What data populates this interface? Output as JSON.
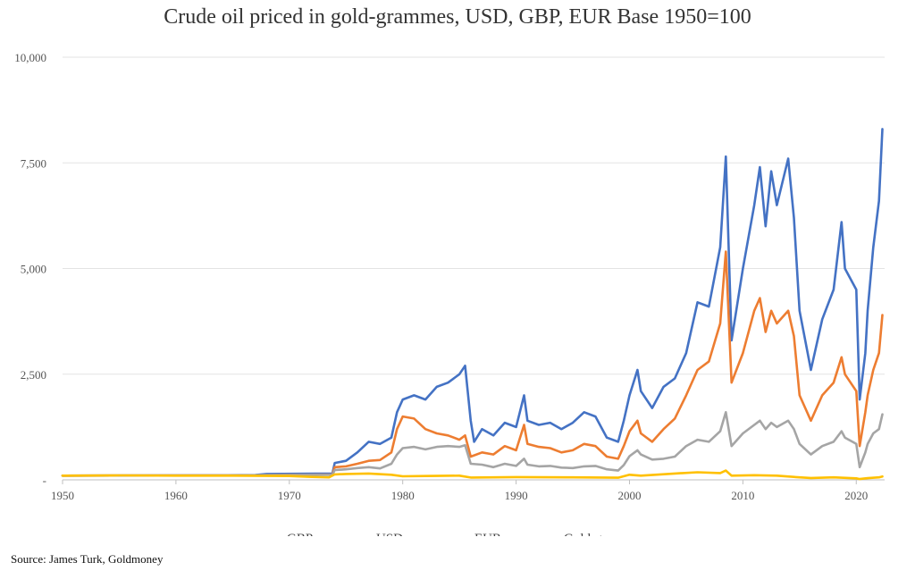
{
  "chart_data": {
    "type": "line",
    "title": "Crude oil priced in gold-grammes, USD, GBP, EUR Base 1950=100",
    "xlabel": "",
    "ylabel": "",
    "xlim": [
      1950,
      2022.5
    ],
    "ylim": [
      0,
      10000
    ],
    "x_ticks": [
      "1950",
      "1960",
      "1970",
      "1980",
      "1990",
      "2000",
      "2010",
      "2020"
    ],
    "y_ticks": [
      "-",
      "2,500",
      "5,000",
      "7,500",
      "10,000"
    ],
    "grid": "horizontal",
    "legend_position": "bottom",
    "source": "Source: James Turk, Goldmoney",
    "series": [
      {
        "name": "GBP",
        "color": "#4472C4",
        "points": [
          [
            1950,
            100
          ],
          [
            1960,
            105
          ],
          [
            1967,
            115
          ],
          [
            1968,
            140
          ],
          [
            1973.8,
            150
          ],
          [
            1974,
            400
          ],
          [
            1975,
            450
          ],
          [
            1976,
            650
          ],
          [
            1977,
            900
          ],
          [
            1978,
            850
          ],
          [
            1979,
            1000
          ],
          [
            1979.5,
            1600
          ],
          [
            1980,
            1900
          ],
          [
            1981,
            2000
          ],
          [
            1982,
            1900
          ],
          [
            1983,
            2200
          ],
          [
            1984,
            2300
          ],
          [
            1985,
            2500
          ],
          [
            1985.5,
            2700
          ],
          [
            1986,
            1400
          ],
          [
            1986.3,
            900
          ],
          [
            1987,
            1200
          ],
          [
            1988,
            1050
          ],
          [
            1989,
            1350
          ],
          [
            1990,
            1250
          ],
          [
            1990.7,
            2000
          ],
          [
            1991,
            1400
          ],
          [
            1992,
            1300
          ],
          [
            1993,
            1350
          ],
          [
            1994,
            1200
          ],
          [
            1995,
            1350
          ],
          [
            1996,
            1600
          ],
          [
            1997,
            1500
          ],
          [
            1998,
            1000
          ],
          [
            1999,
            900
          ],
          [
            1999.5,
            1400
          ],
          [
            2000,
            2000
          ],
          [
            2000.7,
            2600
          ],
          [
            2001,
            2100
          ],
          [
            2002,
            1700
          ],
          [
            2003,
            2200
          ],
          [
            2004,
            2400
          ],
          [
            2005,
            3000
          ],
          [
            2006,
            4200
          ],
          [
            2007,
            4100
          ],
          [
            2008,
            5500
          ],
          [
            2008.5,
            7650
          ],
          [
            2009,
            3300
          ],
          [
            2010,
            5000
          ],
          [
            2011,
            6500
          ],
          [
            2011.5,
            7400
          ],
          [
            2012,
            6000
          ],
          [
            2012.5,
            7300
          ],
          [
            2013,
            6500
          ],
          [
            2014,
            7600
          ],
          [
            2014.5,
            6200
          ],
          [
            2015,
            4000
          ],
          [
            2016,
            2600
          ],
          [
            2017,
            3800
          ],
          [
            2018,
            4500
          ],
          [
            2018.7,
            6100
          ],
          [
            2019,
            5000
          ],
          [
            2020,
            4500
          ],
          [
            2020.3,
            1900
          ],
          [
            2020.8,
            3000
          ],
          [
            2021,
            4000
          ],
          [
            2021.5,
            5500
          ],
          [
            2022,
            6600
          ],
          [
            2022.3,
            8300
          ]
        ]
      },
      {
        "name": "USD",
        "color": "#ED7D31",
        "points": [
          [
            1950,
            100
          ],
          [
            1960,
            105
          ],
          [
            1967,
            110
          ],
          [
            1973.8,
            125
          ],
          [
            1974,
            300
          ],
          [
            1975,
            320
          ],
          [
            1976,
            380
          ],
          [
            1977,
            450
          ],
          [
            1978,
            470
          ],
          [
            1979,
            650
          ],
          [
            1979.5,
            1200
          ],
          [
            1980,
            1500
          ],
          [
            1981,
            1450
          ],
          [
            1982,
            1200
          ],
          [
            1983,
            1100
          ],
          [
            1984,
            1050
          ],
          [
            1985,
            950
          ],
          [
            1985.5,
            1050
          ],
          [
            1986,
            550
          ],
          [
            1987,
            650
          ],
          [
            1988,
            600
          ],
          [
            1989,
            800
          ],
          [
            1990,
            700
          ],
          [
            1990.7,
            1300
          ],
          [
            1991,
            850
          ],
          [
            1992,
            780
          ],
          [
            1993,
            750
          ],
          [
            1994,
            650
          ],
          [
            1995,
            700
          ],
          [
            1996,
            850
          ],
          [
            1997,
            800
          ],
          [
            1998,
            550
          ],
          [
            1999,
            500
          ],
          [
            1999.5,
            800
          ],
          [
            2000,
            1150
          ],
          [
            2000.7,
            1400
          ],
          [
            2001,
            1100
          ],
          [
            2002,
            900
          ],
          [
            2003,
            1200
          ],
          [
            2004,
            1450
          ],
          [
            2005,
            2000
          ],
          [
            2006,
            2600
          ],
          [
            2007,
            2800
          ],
          [
            2008,
            3700
          ],
          [
            2008.5,
            5400
          ],
          [
            2009,
            2300
          ],
          [
            2010,
            3000
          ],
          [
            2011,
            4000
          ],
          [
            2011.5,
            4300
          ],
          [
            2012,
            3500
          ],
          [
            2012.5,
            4000
          ],
          [
            2013,
            3700
          ],
          [
            2014,
            4000
          ],
          [
            2014.5,
            3400
          ],
          [
            2015,
            2000
          ],
          [
            2016,
            1400
          ],
          [
            2017,
            2000
          ],
          [
            2018,
            2300
          ],
          [
            2018.7,
            2900
          ],
          [
            2019,
            2500
          ],
          [
            2020,
            2100
          ],
          [
            2020.3,
            800
          ],
          [
            2020.8,
            1600
          ],
          [
            2021,
            2000
          ],
          [
            2021.5,
            2600
          ],
          [
            2022,
            3000
          ],
          [
            2022.3,
            3900
          ]
        ]
      },
      {
        "name": "EUR",
        "color": "#A5A5A5",
        "points": [
          [
            1950,
            100
          ],
          [
            1960,
            105
          ],
          [
            1967,
            110
          ],
          [
            1973.8,
            120
          ],
          [
            1974,
            230
          ],
          [
            1975,
            250
          ],
          [
            1976,
            280
          ],
          [
            1977,
            300
          ],
          [
            1978,
            270
          ],
          [
            1979,
            380
          ],
          [
            1979.5,
            600
          ],
          [
            1980,
            750
          ],
          [
            1981,
            780
          ],
          [
            1982,
            720
          ],
          [
            1983,
            780
          ],
          [
            1984,
            800
          ],
          [
            1985,
            780
          ],
          [
            1985.5,
            820
          ],
          [
            1986,
            380
          ],
          [
            1987,
            360
          ],
          [
            1988,
            300
          ],
          [
            1989,
            380
          ],
          [
            1990,
            330
          ],
          [
            1990.7,
            500
          ],
          [
            1991,
            360
          ],
          [
            1992,
            320
          ],
          [
            1993,
            330
          ],
          [
            1994,
            290
          ],
          [
            1995,
            280
          ],
          [
            1996,
            320
          ],
          [
            1997,
            330
          ],
          [
            1998,
            250
          ],
          [
            1999,
            220
          ],
          [
            1999.5,
            350
          ],
          [
            2000,
            560
          ],
          [
            2000.7,
            700
          ],
          [
            2001,
            600
          ],
          [
            2002,
            480
          ],
          [
            2003,
            500
          ],
          [
            2004,
            550
          ],
          [
            2005,
            800
          ],
          [
            2006,
            950
          ],
          [
            2007,
            900
          ],
          [
            2008,
            1150
          ],
          [
            2008.5,
            1600
          ],
          [
            2009,
            800
          ],
          [
            2010,
            1100
          ],
          [
            2011,
            1300
          ],
          [
            2011.5,
            1400
          ],
          [
            2012,
            1200
          ],
          [
            2012.5,
            1350
          ],
          [
            2013,
            1250
          ],
          [
            2014,
            1400
          ],
          [
            2014.5,
            1200
          ],
          [
            2015,
            850
          ],
          [
            2016,
            600
          ],
          [
            2017,
            800
          ],
          [
            2018,
            900
          ],
          [
            2018.7,
            1150
          ],
          [
            2019,
            1000
          ],
          [
            2020,
            850
          ],
          [
            2020.3,
            300
          ],
          [
            2020.8,
            650
          ],
          [
            2021,
            850
          ],
          [
            2021.5,
            1100
          ],
          [
            2022,
            1200
          ],
          [
            2022.3,
            1550
          ]
        ]
      },
      {
        "name": "Gold-grammes",
        "color": "#FFC000",
        "points": [
          [
            1950,
            100
          ],
          [
            1955,
            105
          ],
          [
            1960,
            100
          ],
          [
            1965,
            100
          ],
          [
            1970,
            90
          ],
          [
            1972,
            70
          ],
          [
            1973.5,
            60
          ],
          [
            1974,
            130
          ],
          [
            1975,
            140
          ],
          [
            1977,
            150
          ],
          [
            1979,
            120
          ],
          [
            1980,
            85
          ],
          [
            1982,
            90
          ],
          [
            1985,
            100
          ],
          [
            1986,
            55
          ],
          [
            1990,
            65
          ],
          [
            1995,
            60
          ],
          [
            1999,
            50
          ],
          [
            2000,
            120
          ],
          [
            2001,
            100
          ],
          [
            2004,
            150
          ],
          [
            2006,
            180
          ],
          [
            2008,
            160
          ],
          [
            2008.5,
            220
          ],
          [
            2009,
            100
          ],
          [
            2011,
            110
          ],
          [
            2013,
            100
          ],
          [
            2015,
            60
          ],
          [
            2016,
            45
          ],
          [
            2018,
            60
          ],
          [
            2020,
            35
          ],
          [
            2020.3,
            20
          ],
          [
            2021,
            40
          ],
          [
            2022,
            60
          ],
          [
            2022.3,
            80
          ]
        ]
      }
    ]
  }
}
